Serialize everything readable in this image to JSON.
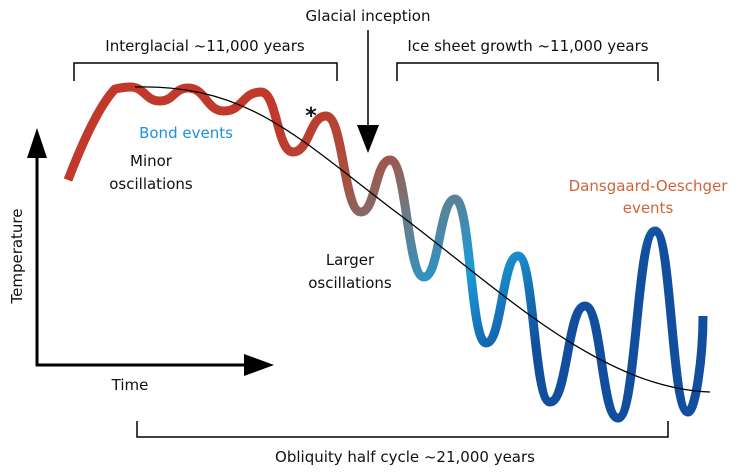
{
  "labels": {
    "glacial_inception": "Glacial inception",
    "interglacial": "Interglacial ~11,000 years",
    "ice_sheet_growth": "Ice sheet growth ~11,000 years",
    "bond_events": "Bond events",
    "minor_line1": "Minor",
    "minor_line2": "oscillations",
    "asterisk": "*",
    "larger_line1": "Larger",
    "larger_line2": "oscillations",
    "do_line1": "Dansgaard-Oeschger",
    "do_line2": "events",
    "y_axis": "Temperature",
    "x_axis": "Time",
    "obliquity": "Obliquity half cycle ~21,000 years"
  },
  "colors": {
    "warm": "#c0392b",
    "transition": "#6b7c88",
    "cold_light": "#1a9ad6",
    "cold_dark": "#114f9e",
    "bond_text": "#1e8fe0",
    "do_text": "#cf643a"
  }
}
